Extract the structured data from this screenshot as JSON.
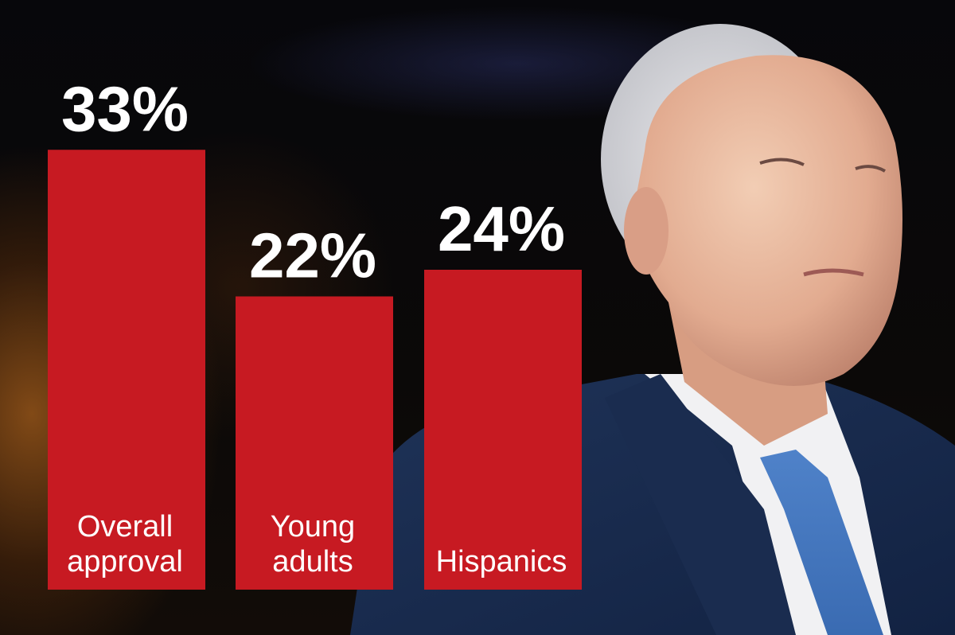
{
  "chart_data": {
    "type": "bar",
    "categories": [
      [
        "Overall",
        "approval"
      ],
      [
        "Young",
        "adults"
      ],
      [
        "Hispanics"
      ]
    ],
    "values": [
      33,
      22,
      24
    ],
    "value_labels": [
      "33%",
      "22%",
      "24%"
    ],
    "ylim": [
      0,
      40
    ],
    "title": "",
    "xlabel": "",
    "ylabel": ""
  },
  "colors": {
    "bar": "#c71a22",
    "text": "#ffffff"
  }
}
